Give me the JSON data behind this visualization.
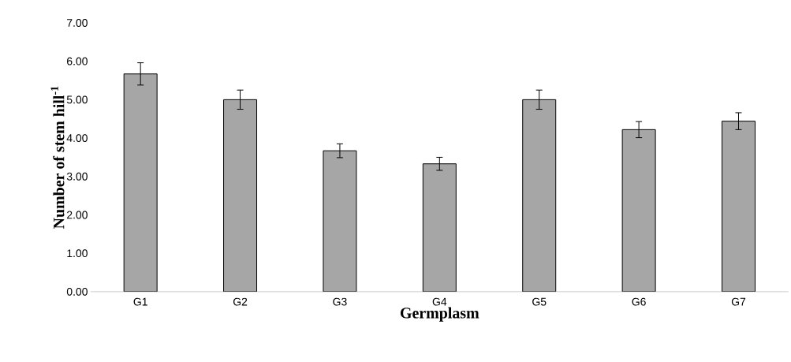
{
  "chart_data": {
    "type": "bar",
    "xlabel": "Germplasm",
    "ylabel": "Number of stem hill$^{-1}$",
    "categories": [
      "G1",
      "G2",
      "G3",
      "G4",
      "G5",
      "G6",
      "G7"
    ],
    "values": [
      5.67,
      5.0,
      3.67,
      3.33,
      5.0,
      4.22,
      4.44
    ],
    "errors": [
      0.29,
      0.25,
      0.18,
      0.17,
      0.25,
      0.21,
      0.22
    ],
    "color": "#a6a6a6",
    "ylim": [
      0,
      7
    ],
    "yticks": [
      {
        "value": 0,
        "label": "0.00"
      },
      {
        "value": 1,
        "label": "1.00"
      },
      {
        "value": 2,
        "label": "2.00"
      },
      {
        "value": 3,
        "label": "3.00"
      },
      {
        "value": 4,
        "label": "4.00"
      },
      {
        "value": 5,
        "label": "5.00"
      },
      {
        "value": 6,
        "label": "6.00"
      },
      {
        "value": 7,
        "label": "7.00"
      }
    ],
    "grid": false
  }
}
